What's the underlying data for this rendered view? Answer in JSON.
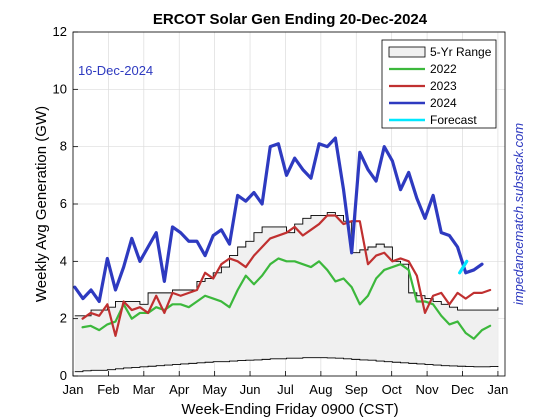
{
  "chart_data": {
    "type": "line",
    "title": "ERCOT Solar Gen Ending 20-Dec-2024",
    "xlabel": "Week-Ending Friday 0900 (CST)",
    "ylabel": "Weekly Avg Generation (GW)",
    "ylim": [
      0,
      12
    ],
    "xlim": [
      0,
      12.2
    ],
    "yticks": [
      "0",
      "2",
      "4",
      "6",
      "8",
      "10",
      "12"
    ],
    "month_ticks": [
      "Jan",
      "Feb",
      "Mar",
      "Apr",
      "May",
      "Jun",
      "Jul",
      "Aug",
      "Sep",
      "Oct",
      "Nov",
      "Dec",
      "Jan"
    ],
    "grid": true,
    "legend_position": "top-right",
    "annotation": "16-Dec-2024",
    "side_note": "impedancematch.substack.com",
    "range": {
      "name": "5-Yr Range",
      "fill": "#f0f0f0",
      "stroke": "#000000",
      "x": [
        0.05,
        0.28,
        0.51,
        0.74,
        0.97,
        1.2,
        1.43,
        1.66,
        1.89,
        2.12,
        2.35,
        2.58,
        2.81,
        3.04,
        3.27,
        3.5,
        3.73,
        3.96,
        4.19,
        4.42,
        4.65,
        4.88,
        5.11,
        5.34,
        5.57,
        5.8,
        6.03,
        6.26,
        6.49,
        6.72,
        6.95,
        7.18,
        7.41,
        7.64,
        7.87,
        8.1,
        8.33,
        8.56,
        8.79,
        9.02,
        9.25,
        9.48,
        9.71,
        9.94,
        10.17,
        10.4,
        10.63,
        10.86,
        11.09,
        11.32,
        11.55,
        11.78,
        12.0
      ],
      "upper": [
        2.1,
        2.1,
        2.3,
        2.3,
        2.4,
        2.6,
        2.6,
        2.6,
        2.5,
        2.9,
        2.9,
        2.9,
        3.0,
        3.0,
        3.0,
        3.3,
        3.4,
        3.6,
        3.8,
        4.2,
        4.5,
        4.7,
        5.0,
        5.2,
        5.2,
        5.2,
        5.0,
        5.3,
        5.5,
        5.6,
        5.6,
        5.7,
        5.6,
        5.4,
        4.3,
        4.4,
        4.5,
        4.6,
        4.5,
        4.0,
        3.9,
        2.9,
        2.8,
        2.7,
        2.6,
        2.5,
        2.4,
        2.3,
        2.3,
        2.3,
        2.3,
        2.3,
        2.4
      ],
      "lower": [
        0.15,
        0.18,
        0.2,
        0.2,
        0.22,
        0.25,
        0.28,
        0.3,
        0.32,
        0.34,
        0.36,
        0.38,
        0.4,
        0.42,
        0.44,
        0.46,
        0.48,
        0.5,
        0.5,
        0.52,
        0.54,
        0.55,
        0.56,
        0.58,
        0.6,
        0.6,
        0.62,
        0.62,
        0.64,
        0.64,
        0.64,
        0.63,
        0.62,
        0.6,
        0.58,
        0.56,
        0.55,
        0.52,
        0.5,
        0.48,
        0.46,
        0.44,
        0.42,
        0.4,
        0.38,
        0.36,
        0.35,
        0.34,
        0.33,
        0.32,
        0.32,
        0.33,
        0.35
      ]
    },
    "series": [
      {
        "name": "2022",
        "color": "#3cb83c",
        "width": 2.2,
        "x": [
          0.27,
          0.5,
          0.74,
          0.97,
          1.2,
          1.43,
          1.66,
          1.89,
          2.12,
          2.35,
          2.58,
          2.81,
          3.04,
          3.27,
          3.5,
          3.73,
          3.96,
          4.19,
          4.42,
          4.65,
          4.88,
          5.11,
          5.34,
          5.57,
          5.8,
          6.03,
          6.26,
          6.49,
          6.72,
          6.95,
          7.18,
          7.41,
          7.64,
          7.87,
          8.1,
          8.33,
          8.56,
          8.79,
          9.02,
          9.25,
          9.48,
          9.71,
          9.94,
          10.17,
          10.4,
          10.63,
          10.86,
          11.09,
          11.32,
          11.55,
          11.78
        ],
        "y": [
          1.7,
          1.75,
          1.6,
          1.8,
          1.9,
          2.5,
          2.0,
          2.2,
          2.2,
          2.4,
          2.3,
          2.5,
          2.5,
          2.4,
          2.6,
          2.8,
          2.7,
          2.6,
          2.4,
          3.0,
          3.5,
          3.2,
          3.5,
          3.9,
          4.1,
          4.0,
          4.0,
          3.9,
          3.8,
          4.0,
          3.7,
          3.3,
          3.4,
          3.1,
          2.5,
          2.8,
          3.4,
          3.7,
          3.8,
          3.9,
          3.7,
          2.6,
          2.6,
          2.5,
          2.1,
          1.8,
          1.9,
          1.5,
          1.3,
          1.6,
          1.75
        ]
      },
      {
        "name": "2023",
        "color": "#c03030",
        "width": 2.2,
        "x": [
          0.27,
          0.5,
          0.74,
          0.97,
          1.2,
          1.43,
          1.66,
          1.89,
          2.12,
          2.35,
          2.58,
          2.81,
          3.04,
          3.27,
          3.5,
          3.73,
          3.96,
          4.19,
          4.42,
          4.65,
          4.88,
          5.11,
          5.34,
          5.57,
          5.8,
          6.03,
          6.26,
          6.49,
          6.72,
          6.95,
          7.18,
          7.41,
          7.64,
          7.87,
          8.1,
          8.33,
          8.56,
          8.79,
          9.02,
          9.25,
          9.48,
          9.71,
          9.94,
          10.17,
          10.4,
          10.63,
          10.86,
          11.09,
          11.32,
          11.55,
          11.78
        ],
        "y": [
          2.0,
          2.2,
          2.1,
          2.5,
          1.4,
          2.6,
          2.3,
          2.4,
          2.2,
          2.8,
          2.2,
          2.9,
          2.8,
          2.9,
          3.0,
          3.6,
          3.4,
          3.9,
          4.1,
          4.0,
          3.8,
          4.2,
          4.5,
          4.8,
          4.9,
          5.0,
          5.2,
          4.9,
          5.1,
          5.3,
          5.6,
          5.6,
          5.3,
          5.4,
          5.4,
          3.9,
          4.2,
          4.3,
          4.0,
          4.1,
          4.0,
          3.5,
          2.2,
          2.8,
          2.9,
          2.5,
          2.9,
          2.7,
          2.9,
          2.9,
          3.0
        ]
      },
      {
        "name": "2024",
        "color": "#2e3ac0",
        "width": 3.2,
        "x": [
          0.05,
          0.28,
          0.51,
          0.74,
          0.97,
          1.2,
          1.43,
          1.66,
          1.89,
          2.12,
          2.35,
          2.58,
          2.81,
          3.04,
          3.27,
          3.5,
          3.73,
          3.96,
          4.19,
          4.42,
          4.65,
          4.88,
          5.11,
          5.34,
          5.57,
          5.8,
          6.03,
          6.26,
          6.49,
          6.72,
          6.95,
          7.18,
          7.41,
          7.64,
          7.87,
          8.1,
          8.33,
          8.56,
          8.79,
          9.02,
          9.25,
          9.48,
          9.71,
          9.94,
          10.17,
          10.4,
          10.63,
          10.86,
          11.09,
          11.32,
          11.55
        ],
        "y": [
          3.1,
          2.7,
          3.0,
          2.6,
          4.1,
          3.0,
          3.8,
          4.8,
          4.0,
          4.5,
          5.0,
          3.3,
          5.2,
          5.0,
          4.7,
          4.7,
          4.2,
          4.9,
          5.1,
          4.6,
          6.3,
          6.1,
          6.4,
          6.0,
          8.0,
          8.1,
          7.0,
          7.6,
          7.2,
          6.9,
          8.1,
          8.0,
          8.3,
          6.5,
          4.3,
          7.8,
          7.2,
          6.8,
          8.0,
          7.5,
          6.5,
          7.1,
          6.2,
          5.5,
          6.3,
          5.0,
          4.9,
          4.5,
          3.6,
          3.7,
          3.9
        ]
      },
      {
        "name": "Forecast",
        "color": "#00e8ff",
        "width": 3.2,
        "x": [
          10.92,
          11.12
        ],
        "y": [
          3.6,
          4.0
        ]
      }
    ]
  }
}
